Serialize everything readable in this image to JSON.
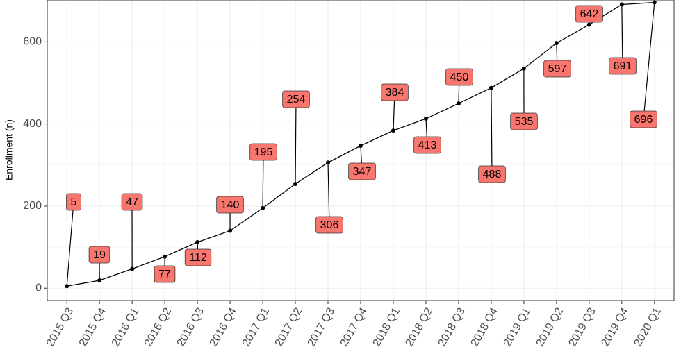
{
  "chart_data": {
    "type": "line",
    "y_label": "Enrollment (n)",
    "categories": [
      "2015 Q3",
      "2015 Q4",
      "2016 Q1",
      "2016 Q2",
      "2016 Q3",
      "2016 Q4",
      "2017 Q1",
      "2017 Q2",
      "2017 Q3",
      "2017 Q4",
      "2018 Q1",
      "2018 Q2",
      "2018 Q3",
      "2018 Q4",
      "2019 Q1",
      "2019 Q2",
      "2019 Q3",
      "2019 Q4",
      "2020 Q1"
    ],
    "values": [
      5,
      19,
      47,
      77,
      112,
      140,
      195,
      254,
      306,
      347,
      384,
      413,
      450,
      488,
      535,
      597,
      642,
      691,
      696
    ],
    "color": "#000000",
    "label_fill": "#F8766D",
    "ylim": [
      -30,
      702
    ],
    "yticks": [
      0,
      200,
      400,
      600
    ],
    "minor_yticks": [
      100,
      300,
      500
    ],
    "grid": true
  }
}
